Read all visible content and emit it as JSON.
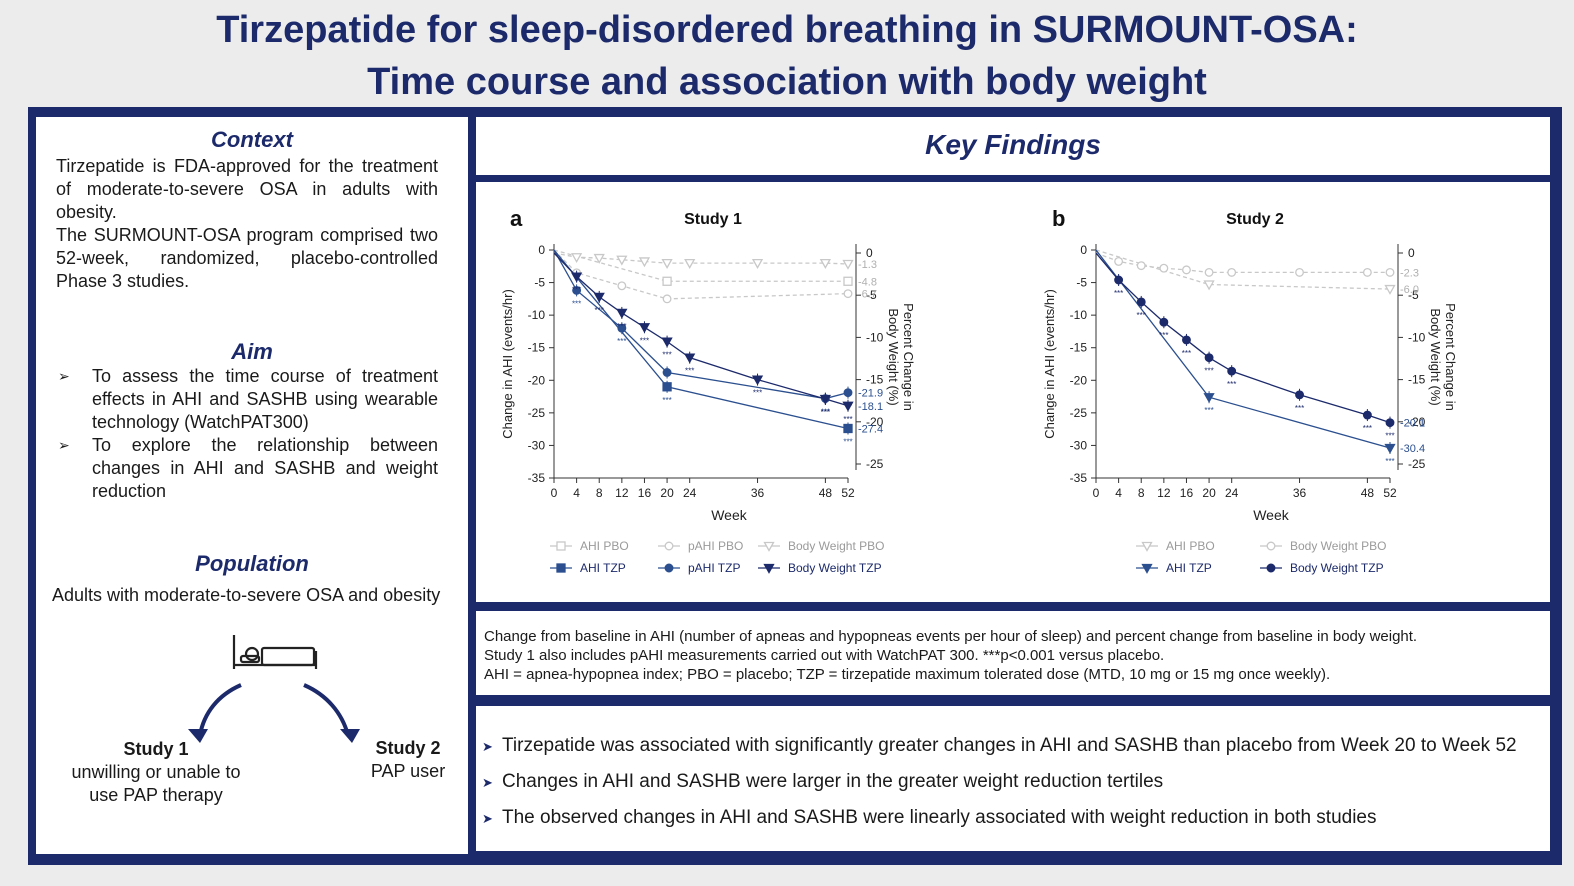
{
  "title": {
    "line1": "Tirzepatide for sleep-disordered breathing in SURMOUNT-OSA:",
    "line2": "Time course and association with body weight"
  },
  "context": {
    "heading": "Context",
    "p1": "Tirzepatide is FDA-approved for the treatment of moderate-to-severe OSA in adults with obesity.",
    "p2": "The SURMOUNT-OSA program comprised two 52-week, randomized, placebo-controlled Phase 3 studies."
  },
  "aim": {
    "heading": "Aim",
    "items": [
      "To assess the time course of treatment effects in AHI and SASHB using wearable technology (WatchPAT300)",
      "To explore the relationship between changes in AHI and SASHB and weight reduction"
    ]
  },
  "population": {
    "heading": "Population",
    "text": "Adults with moderate-to-severe OSA and obesity",
    "study1_title": "Study 1",
    "study1_desc": "unwilling or unable to use PAP therapy",
    "study2_title": "Study 2",
    "study2_desc": "PAP user"
  },
  "key_findings": {
    "heading": "Key Findings"
  },
  "chart_data": [
    {
      "type": "line",
      "panel": "a",
      "title": "Study 1",
      "xlabel": "Week",
      "ylabel": "Change in AHI (events/hr)",
      "y2label": "Percent Change in Body Weight (%)",
      "xticks": [
        0,
        4,
        8,
        12,
        16,
        20,
        24,
        36,
        48,
        52
      ],
      "yticks": [
        0,
        -5,
        -10,
        -15,
        -20,
        -25,
        -30,
        -35
      ],
      "y2ticks": [
        0,
        -5,
        -10,
        -15,
        -20,
        -25
      ],
      "xlim": [
        0,
        52
      ],
      "ylim": [
        -35,
        0
      ],
      "y2lim": [
        -25,
        0
      ],
      "series": [
        {
          "name": "AHI PBO",
          "axis": "left",
          "color": "#c8c8c8",
          "marker": "square-open",
          "x": [
            0,
            20,
            52
          ],
          "y": [
            0,
            -4.8,
            -4.8
          ],
          "end_label": "-4.8"
        },
        {
          "name": "pAHI PBO",
          "axis": "left",
          "color": "#c8c8c8",
          "marker": "circle-open",
          "x": [
            0,
            4,
            12,
            20,
            52
          ],
          "y": [
            0,
            -3.5,
            -5.5,
            -7.5,
            -6.7
          ],
          "end_label": "-6.7"
        },
        {
          "name": "Body Weight PBO",
          "axis": "right",
          "color": "#c8c8c8",
          "marker": "triangle-open",
          "x": [
            0,
            4,
            8,
            12,
            16,
            20,
            24,
            36,
            48,
            52
          ],
          "y": [
            0,
            -0.5,
            -0.6,
            -0.8,
            -1.0,
            -1.2,
            -1.2,
            -1.2,
            -1.2,
            -1.3
          ],
          "end_label": "-1.3"
        },
        {
          "name": "AHI TZP",
          "axis": "left",
          "color": "#2b4f8f",
          "marker": "square",
          "x": [
            0,
            20,
            52
          ],
          "y": [
            0,
            -21.0,
            -27.4
          ],
          "end_label": "-27.4"
        },
        {
          "name": "pAHI TZP",
          "axis": "left",
          "color": "#2b4f8f",
          "marker": "circle",
          "x": [
            0,
            4,
            12,
            20,
            48,
            52
          ],
          "y": [
            0,
            -6.2,
            -12.0,
            -18.8,
            -22.8,
            -21.9
          ],
          "end_label": "-21.9"
        },
        {
          "name": "Body Weight TZP",
          "axis": "right",
          "color": "#1c2a6b",
          "marker": "triangle",
          "x": [
            0,
            4,
            8,
            12,
            16,
            20,
            24,
            36,
            48,
            52
          ],
          "y": [
            0,
            -2.8,
            -5.2,
            -7.1,
            -8.8,
            -10.5,
            -12.4,
            -15.0,
            -17.3,
            -18.1
          ],
          "end_label": "-18.1"
        }
      ],
      "significance_label": "***"
    },
    {
      "type": "line",
      "panel": "b",
      "title": "Study 2",
      "xlabel": "Week",
      "ylabel": "Change in AHI (events/hr)",
      "y2label": "Percent Change in Body Weight (%)",
      "xticks": [
        0,
        4,
        8,
        12,
        16,
        20,
        24,
        36,
        48,
        52
      ],
      "yticks": [
        0,
        -5,
        -10,
        -15,
        -20,
        -25,
        -30,
        -35
      ],
      "y2ticks": [
        0,
        -5,
        -10,
        -15,
        -20,
        -25
      ],
      "xlim": [
        0,
        52
      ],
      "ylim": [
        -35,
        0
      ],
      "y2lim": [
        -25,
        0
      ],
      "series": [
        {
          "name": "AHI PBO",
          "axis": "left",
          "color": "#c8c8c8",
          "marker": "triangle-open",
          "x": [
            0,
            20,
            52
          ],
          "y": [
            0,
            -5.3,
            -6.0
          ],
          "end_label": "-6.0"
        },
        {
          "name": "Body Weight PBO",
          "axis": "right",
          "color": "#c8c8c8",
          "marker": "circle-open",
          "x": [
            0,
            4,
            8,
            12,
            16,
            20,
            24,
            36,
            48,
            52
          ],
          "y": [
            0,
            -1.0,
            -1.5,
            -1.8,
            -2.0,
            -2.3,
            -2.3,
            -2.3,
            -2.3,
            -2.3
          ],
          "end_label": "-2.3"
        },
        {
          "name": "AHI TZP",
          "axis": "left",
          "color": "#2b4f8f",
          "marker": "triangle",
          "x": [
            0,
            20,
            52
          ],
          "y": [
            0,
            -22.6,
            -30.4
          ],
          "end_label": "-30.4"
        },
        {
          "name": "Body Weight TZP",
          "axis": "right",
          "color": "#1c2a6b",
          "marker": "circle",
          "x": [
            0,
            4,
            8,
            12,
            16,
            20,
            24,
            36,
            48,
            52
          ],
          "y": [
            0,
            -3.2,
            -5.8,
            -8.2,
            -10.3,
            -12.4,
            -14.0,
            -16.8,
            -19.2,
            -20.1
          ],
          "end_label": "-20.1"
        }
      ],
      "significance_label": "***"
    }
  ],
  "caption": {
    "line1": "Change from baseline in AHI (number of apneas and hypopneas events per hour of sleep) and percent change from baseline in body weight.",
    "line2": "Study 1 also includes pAHI measurements carried out with WatchPAT 300. ***p<0.001 versus placebo.",
    "line3": "AHI = apnea-hypopnea index; PBO = placebo; TZP = tirzepatide maximum tolerated dose (MTD, 10 mg or 15 mg once weekly)."
  },
  "findings": [
    "Tirzepatide was associated with significantly greater changes in AHI and SASHB than placebo from Week 20 to Week 52",
    "Changes in AHI and SASHB were larger in the greater weight reduction tertiles",
    "The observed changes in AHI and SASHB were linearly associated with weight reduction in both studies"
  ],
  "colors": {
    "navy": "#1c2a6b",
    "series_dark": "#2b4f8f",
    "series_light": "#c8c8c8"
  }
}
